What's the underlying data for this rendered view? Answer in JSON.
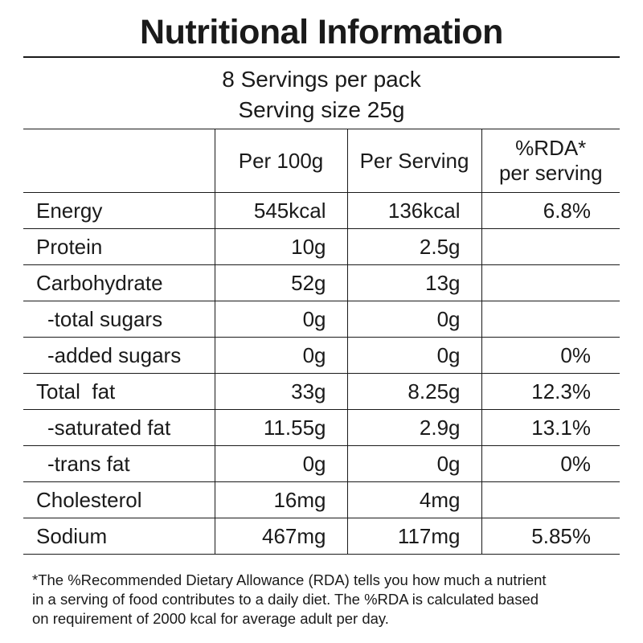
{
  "title": "Nutritional Information",
  "servings": {
    "per_pack": "8 Servings per pack",
    "size": "Serving size 25g"
  },
  "table": {
    "headers": {
      "name": "",
      "per_100g": "Per 100g",
      "per_serving": "Per Serving",
      "rda_line1": "%RDA*",
      "rda_line2": "per serving"
    },
    "rows": [
      {
        "name": "Energy",
        "per_100g": "545kcal",
        "per_serving": "136kcal",
        "rda": "6.8%"
      },
      {
        "name": "Protein",
        "per_100g": "10g",
        "per_serving": "2.5g",
        "rda": ""
      },
      {
        "name": "Carbohydrate",
        "per_100g": "52g",
        "per_serving": "13g",
        "rda": ""
      },
      {
        "name": "-total sugars",
        "per_100g": "0g",
        "per_serving": "0g",
        "rda": ""
      },
      {
        "name": "-added sugars",
        "per_100g": "0g",
        "per_serving": "0g",
        "rda": "0%"
      },
      {
        "name": "Total  fat",
        "per_100g": "33g",
        "per_serving": "8.25g",
        "rda": "12.3%"
      },
      {
        "name": "-saturated fat",
        "per_100g": "11.55g",
        "per_serving": "2.9g",
        "rda": "13.1%"
      },
      {
        "name": "-trans fat",
        "per_100g": "0g",
        "per_serving": "0g",
        "rda": "0%"
      },
      {
        "name": "Cholesterol",
        "per_100g": "16mg",
        "per_serving": "4mg",
        "rda": ""
      },
      {
        "name": "Sodium",
        "per_100g": "467mg",
        "per_serving": "117mg",
        "rda": "5.85%"
      }
    ]
  },
  "footnote": {
    "line1": "*The %Recommended Dietary Allowance (RDA) tells you how much a nutrient",
    "line2": "in a serving of food contributes to a daily diet. The %RDA is calculated based",
    "line3": "on requirement of 2000 kcal for average adult per day."
  }
}
